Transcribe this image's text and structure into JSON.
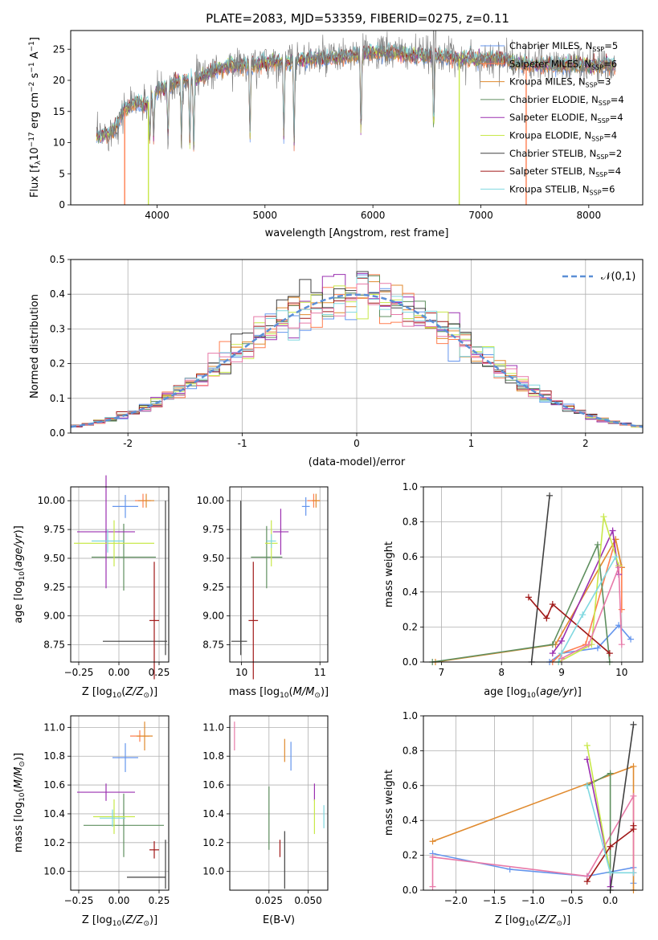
{
  "figure": {
    "title": "PLATE=2083, MJD=53359, FIBERID=0275, z=0.11"
  },
  "colors": {
    "Chabrier MILES": "#6495ed",
    "Salpeter MILES": "#ff7f50",
    "Kroupa MILES": "#e08a2e",
    "Chabrier ELODIE": "#5f8f5f",
    "Salpeter ELODIE": "#9b30b0",
    "Kroupa ELODIE": "#c8e84a",
    "Chabrier STELIB": "#404040",
    "Salpeter STELIB": "#a01818",
    "Kroupa STELIB": "#80d8e0",
    "pink": "#e87aa8",
    "gaussian": "#5b8fd6"
  },
  "chart_data": [
    {
      "type": "line",
      "id": "spectrum",
      "title": "PLATE=2083, MJD=53359, FIBERID=0275, z=0.11",
      "xlabel": "wavelength [Angstrom, rest frame]",
      "ylabel": "Flux [f_λ 10^-17 erg cm^-2 s^-1 A^-1]",
      "xlim": [
        3200,
        8500
      ],
      "ylim": [
        0,
        28
      ],
      "xticks": [
        4000,
        5000,
        6000,
        7000,
        8000
      ],
      "yticks": [
        0,
        5,
        10,
        15,
        20,
        25
      ],
      "grid": false,
      "legend_position": "right",
      "legend": [
        {
          "name": "Chabrier MILES",
          "nssp": "5"
        },
        {
          "name": "Salpeter MILES",
          "nssp": "6"
        },
        {
          "name": "Kroupa MILES",
          "nssp": "3"
        },
        {
          "name": "Chabrier ELODIE",
          "nssp": "4"
        },
        {
          "name": "Salpeter ELODIE",
          "nssp": "4"
        },
        {
          "name": "Kroupa ELODIE",
          "nssp": "4"
        },
        {
          "name": "Chabrier STELIB",
          "nssp": "2"
        },
        {
          "name": "Salpeter STELIB",
          "nssp": "4"
        },
        {
          "name": "Kroupa STELIB",
          "nssp": "6"
        }
      ],
      "continuum": {
        "x": [
          3450,
          3600,
          3700,
          3800,
          3900,
          4000,
          4100,
          4200,
          4300,
          4400,
          4500,
          4600,
          4700,
          4800,
          4900,
          5000,
          5200,
          5400,
          5600,
          5800,
          6000,
          6200,
          6400,
          6600,
          6800,
          7000,
          7200,
          7400,
          7600,
          7800,
          8000,
          8250
        ],
        "y": [
          11,
          12,
          15.5,
          16.5,
          16,
          18.5,
          19,
          20,
          20,
          20.5,
          21.5,
          22,
          22.5,
          22.5,
          22.5,
          23,
          23,
          23.5,
          23.5,
          24,
          24.5,
          24.5,
          24,
          24,
          23.5,
          23.5,
          23.5,
          22.5,
          22.5,
          22.5,
          22.5,
          22.5
        ]
      },
      "absorption": [
        [
          3934,
          9
        ],
        [
          3969,
          8
        ],
        [
          4102,
          16
        ],
        [
          4226,
          17
        ],
        [
          4304,
          15
        ],
        [
          4340,
          16
        ],
        [
          4861,
          18
        ],
        [
          5175,
          18
        ],
        [
          5270,
          20
        ],
        [
          5890,
          19
        ],
        [
          6563,
          20
        ]
      ],
      "spikes": [
        [
          6563,
          30
        ],
        [
          6583,
          28
        ],
        [
          5007,
          25
        ],
        [
          6300,
          26
        ],
        [
          6716,
          26
        ]
      ],
      "drops": [
        [
          3700,
          0
        ],
        [
          3920,
          0
        ],
        [
          6800,
          0
        ],
        [
          7420,
          0
        ]
      ]
    },
    {
      "type": "histogram",
      "id": "residuals",
      "xlabel": "(data-model)/error",
      "ylabel": "Normed distribution",
      "xlim": [
        -2.5,
        2.5
      ],
      "ylim": [
        0,
        0.5
      ],
      "xticks": [
        -2,
        -1,
        0,
        1,
        2
      ],
      "yticks": [
        0,
        0.1,
        0.2,
        0.3,
        0.4,
        0.5
      ],
      "grid": true,
      "bin_width": 0.1,
      "reference": {
        "name": "𝒩(0,1)",
        "mean": 0,
        "sigma": 1
      },
      "legend_position": "top-right"
    },
    {
      "type": "errorbar",
      "id": "age_vs_Z",
      "xlabel": "Z [log10(Z/Z⊙)]",
      "ylabel": "age [log10(age/yr)]",
      "xlim": [
        -0.3,
        0.31
      ],
      "ylim": [
        8.6,
        10.12
      ],
      "xticks": [
        -0.25,
        0.0,
        0.25
      ],
      "yticks": [
        8.75,
        9.0,
        9.25,
        9.5,
        9.75,
        10.0
      ],
      "grid": true,
      "points": [
        {
          "series": "Chabrier MILES",
          "x": 0.04,
          "xerr": 0.08,
          "y": 9.95,
          "yerr": 0.1
        },
        {
          "series": "Salpeter MILES",
          "x": 0.15,
          "xerr": 0.05,
          "y": 10.0,
          "yerr": 0.06
        },
        {
          "series": "Kroupa MILES",
          "x": 0.17,
          "xerr": 0.05,
          "y": 10.0,
          "yerr": 0.06
        },
        {
          "series": "Chabrier ELODIE",
          "x": 0.03,
          "xerr": 0.2,
          "y": 9.51,
          "yerr": 0.29
        },
        {
          "series": "Salpeter ELODIE",
          "x": -0.08,
          "xerr": 0.18,
          "y": 9.73,
          "yerr": 0.49
        },
        {
          "series": "Kroupa ELODIE",
          "x": -0.03,
          "xerr": 0.25,
          "y": 9.63,
          "yerr": 0.2
        },
        {
          "series": "Chabrier STELIB",
          "x": 0.1,
          "xerr": 0.2,
          "y": 8.78,
          "yerr": 0.0
        },
        {
          "series": "Chabrier STELIB",
          "x": 0.29,
          "xerr": 0.0,
          "y": 9.33,
          "yerr": 0.67
        },
        {
          "series": "Salpeter STELIB",
          "x": 0.22,
          "xerr": 0.03,
          "y": 8.96,
          "yerr": 0.51
        },
        {
          "series": "Kroupa STELIB",
          "x": -0.07,
          "xerr": 0.1,
          "y": 9.65,
          "yerr": 0.1
        }
      ]
    },
    {
      "type": "errorbar",
      "id": "age_vs_mass",
      "xlabel": "mass [log10(M/M⊙)]",
      "ylabel": "",
      "xlim": [
        9.85,
        11.1
      ],
      "ylim": [
        8.6,
        10.12
      ],
      "xticks": [
        10,
        11
      ],
      "yticks": [
        8.75,
        9.0,
        9.25,
        9.5,
        9.75,
        10.0
      ],
      "grid": true,
      "points": [
        {
          "series": "Chabrier MILES",
          "x": 10.82,
          "xerr": 0.05,
          "y": 9.95,
          "yerr": 0.08
        },
        {
          "series": "Salpeter MILES",
          "x": 10.92,
          "xerr": 0.08,
          "y": 10.0,
          "yerr": 0.06
        },
        {
          "series": "Kroupa MILES",
          "x": 10.95,
          "xerr": 0.05,
          "y": 10.0,
          "yerr": 0.06
        },
        {
          "series": "Chabrier ELODIE",
          "x": 10.32,
          "xerr": 0.2,
          "y": 9.51,
          "yerr": 0.27
        },
        {
          "series": "Salpeter ELODIE",
          "x": 10.5,
          "xerr": 0.1,
          "y": 9.73,
          "yerr": 0.2
        },
        {
          "series": "Kroupa ELODIE",
          "x": 10.38,
          "xerr": 0.08,
          "y": 9.63,
          "yerr": 0.2
        },
        {
          "series": "Chabrier STELIB",
          "x": 9.97,
          "xerr": 0.1,
          "y": 8.78,
          "yerr": 0.0
        },
        {
          "series": "Chabrier STELIB",
          "x": 9.99,
          "xerr": 0.0,
          "y": 9.33,
          "yerr": 0.67
        },
        {
          "series": "Salpeter STELIB",
          "x": 10.15,
          "xerr": 0.06,
          "y": 8.96,
          "yerr": 0.51
        },
        {
          "series": "Kroupa STELIB",
          "x": 10.38,
          "xerr": 0.06,
          "y": 9.65,
          "yerr": 0.06
        }
      ]
    },
    {
      "type": "line",
      "id": "massweight_vs_age",
      "xlabel": "age [log10(age/yr)]",
      "ylabel": "mass weight",
      "xlim": [
        6.7,
        10.35
      ],
      "ylim": [
        0,
        1
      ],
      "xticks": [
        7,
        8,
        9,
        10
      ],
      "yticks": [
        0.0,
        0.2,
        0.4,
        0.6,
        0.8,
        1.0
      ],
      "grid": true,
      "series": [
        {
          "name": "Chabrier MILES",
          "x": [
            8.8,
            9.0,
            9.6,
            9.95,
            10.15
          ],
          "y": [
            0.0,
            0.05,
            0.08,
            0.21,
            0.13
          ]
        },
        {
          "name": "Salpeter MILES",
          "x": [
            8.85,
            9.0,
            9.4,
            9.9,
            10.0,
            10.0
          ],
          "y": [
            0.0,
            0.05,
            0.1,
            0.7,
            0.54,
            0.3
          ]
        },
        {
          "name": "Kroupa MILES",
          "x": [
            6.9,
            8.9,
            9.9,
            10.0
          ],
          "y": [
            0.0,
            0.1,
            0.7,
            0.54
          ]
        },
        {
          "name": "Chabrier ELODIE",
          "x": [
            6.85,
            8.85,
            9.6,
            9.8
          ],
          "y": [
            0.0,
            0.1,
            0.67,
            0.0
          ]
        },
        {
          "name": "Salpeter ELODIE",
          "x": [
            8.85,
            9.0,
            9.85,
            9.95
          ],
          "y": [
            0.05,
            0.12,
            0.75,
            0.5
          ]
        },
        {
          "name": "Kroupa ELODIE",
          "x": [
            8.95,
            9.5,
            9.7,
            9.95
          ],
          "y": [
            0.0,
            0.1,
            0.83,
            0.55
          ]
        },
        {
          "name": "Chabrier STELIB",
          "x": [
            8.5,
            8.8
          ],
          "y": [
            0.0,
            0.95
          ]
        },
        {
          "name": "Salpeter STELIB",
          "x": [
            8.45,
            8.75,
            8.85,
            9.8
          ],
          "y": [
            0.37,
            0.25,
            0.33,
            0.05
          ]
        },
        {
          "name": "Kroupa STELIB",
          "x": [
            8.95,
            9.0,
            9.35,
            9.9
          ],
          "y": [
            0.0,
            0.05,
            0.27,
            0.6
          ]
        },
        {
          "name": "pink",
          "x": [
            9.0,
            9.45,
            9.95,
            10.0
          ],
          "y": [
            0.02,
            0.1,
            0.54,
            0.1
          ]
        }
      ]
    },
    {
      "type": "errorbar",
      "id": "mass_vs_Z",
      "xlabel": "Z [log10(Z/Z⊙)]",
      "ylabel": "mass [log10(M/M⊙)]",
      "xlim": [
        -0.3,
        0.31
      ],
      "ylim": [
        9.87,
        11.08
      ],
      "xticks": [
        -0.25,
        0.0,
        0.25
      ],
      "yticks": [
        10.0,
        10.2,
        10.4,
        10.6,
        10.8,
        11.0
      ],
      "grid": true,
      "points": [
        {
          "series": "Chabrier MILES",
          "x": 0.04,
          "xerr": 0.08,
          "y": 10.79,
          "yerr": 0.1
        },
        {
          "series": "Salpeter MILES",
          "x": 0.13,
          "xerr": 0.06,
          "y": 10.94,
          "yerr": 0.04
        },
        {
          "series": "Kroupa MILES",
          "x": 0.16,
          "xerr": 0.05,
          "y": 10.94,
          "yerr": 0.1
        },
        {
          "series": "Chabrier ELODIE",
          "x": 0.03,
          "xerr": 0.25,
          "y": 10.32,
          "yerr": 0.22
        },
        {
          "series": "Salpeter ELODIE",
          "x": -0.08,
          "xerr": 0.18,
          "y": 10.55,
          "yerr": 0.06
        },
        {
          "series": "Kroupa ELODIE",
          "x": -0.03,
          "xerr": 0.13,
          "y": 10.38,
          "yerr": 0.12
        },
        {
          "series": "Chabrier STELIB",
          "x": 0.17,
          "xerr": 0.12,
          "y": 9.96,
          "yerr": 0.0
        },
        {
          "series": "Chabrier STELIB",
          "x": 0.29,
          "xerr": 0.0,
          "y": 10.05,
          "yerr": 0.17
        },
        {
          "series": "Salpeter STELIB",
          "x": 0.22,
          "xerr": 0.03,
          "y": 10.15,
          "yerr": 0.06
        },
        {
          "series": "Kroupa STELIB",
          "x": -0.04,
          "xerr": 0.08,
          "y": 10.37,
          "yerr": 0.06
        }
      ]
    },
    {
      "type": "errorbar",
      "id": "mass_vs_ebv",
      "xlabel": "E(B-V)",
      "ylabel": "",
      "xlim": [
        0.0,
        0.0625
      ],
      "ylim": [
        9.87,
        11.08
      ],
      "xticks": [
        0.025,
        0.05
      ],
      "yticks": [
        10.0,
        10.2,
        10.4,
        10.6,
        10.8,
        11.0
      ],
      "grid": true,
      "points": [
        {
          "series": "pink",
          "x": 0.003,
          "y": 10.94,
          "yerr": 0.1
        },
        {
          "series": "Kroupa MILES",
          "x": 0.035,
          "y": 10.84,
          "yerr": 0.08
        },
        {
          "series": "Chabrier MILES",
          "x": 0.039,
          "y": 10.8,
          "yerr": 0.1
        },
        {
          "series": "Chabrier ELODIE",
          "x": 0.025,
          "y": 10.37,
          "yerr": 0.22
        },
        {
          "series": "Salpeter ELODIE",
          "x": 0.054,
          "y": 10.55,
          "yerr": 0.06
        },
        {
          "series": "Kroupa ELODIE",
          "x": 0.054,
          "y": 10.38,
          "yerr": 0.12
        },
        {
          "series": "Kroupa STELIB",
          "x": 0.06,
          "y": 10.38,
          "yerr": 0.08
        },
        {
          "series": "Salpeter STELIB",
          "x": 0.032,
          "y": 10.16,
          "yerr": 0.06
        },
        {
          "series": "Chabrier STELIB",
          "x": 0.035,
          "y": 10.08,
          "yerr": 0.2
        }
      ]
    },
    {
      "type": "line",
      "id": "massweight_vs_Z",
      "xlabel": "Z [log10(Z/Z⊙)]",
      "ylabel": "mass weight",
      "xlim": [
        -2.42,
        0.42
      ],
      "ylim": [
        0,
        1
      ],
      "xticks": [
        -2.0,
        -1.5,
        -1.0,
        -0.5,
        0.0
      ],
      "yticks": [
        0.0,
        0.2,
        0.4,
        0.6,
        0.8,
        1.0
      ],
      "grid": true,
      "series": [
        {
          "name": "Chabrier MILES",
          "x": [
            -2.3,
            -1.3,
            -0.3,
            0.3,
            0.3
          ],
          "y": [
            0.21,
            0.12,
            0.08,
            0.13,
            0.04
          ]
        },
        {
          "name": "Kroupa MILES",
          "x": [
            -2.3,
            0.3,
            0.3
          ],
          "y": [
            0.28,
            0.71,
            0.0
          ]
        },
        {
          "name": "pink",
          "x": [
            -2.3,
            -2.3,
            -0.3,
            0.3,
            0.3
          ],
          "y": [
            0.02,
            0.19,
            0.08,
            0.54,
            0.1
          ]
        },
        {
          "name": "Chabrier ELODIE",
          "x": [
            -0.3,
            0.0,
            0.0
          ],
          "y": [
            0.6,
            0.67,
            0.1
          ]
        },
        {
          "name": "Salpeter ELODIE",
          "x": [
            -0.3,
            0.0,
            0.0
          ],
          "y": [
            0.75,
            0.1,
            0.02
          ]
        },
        {
          "name": "Kroupa ELODIE",
          "x": [
            -0.3,
            0.0
          ],
          "y": [
            0.83,
            0.1
          ]
        },
        {
          "name": "Chabrier STELIB",
          "x": [
            0.0,
            0.3
          ],
          "y": [
            0.0,
            0.95
          ]
        },
        {
          "name": "Salpeter STELIB",
          "x": [
            -0.3,
            0.0,
            0.3,
            0.3
          ],
          "y": [
            0.05,
            0.25,
            0.35,
            0.37
          ]
        },
        {
          "name": "Kroupa STELIB",
          "x": [
            -0.3,
            0.0,
            0.3
          ],
          "y": [
            0.6,
            0.1,
            0.1
          ]
        }
      ]
    }
  ]
}
